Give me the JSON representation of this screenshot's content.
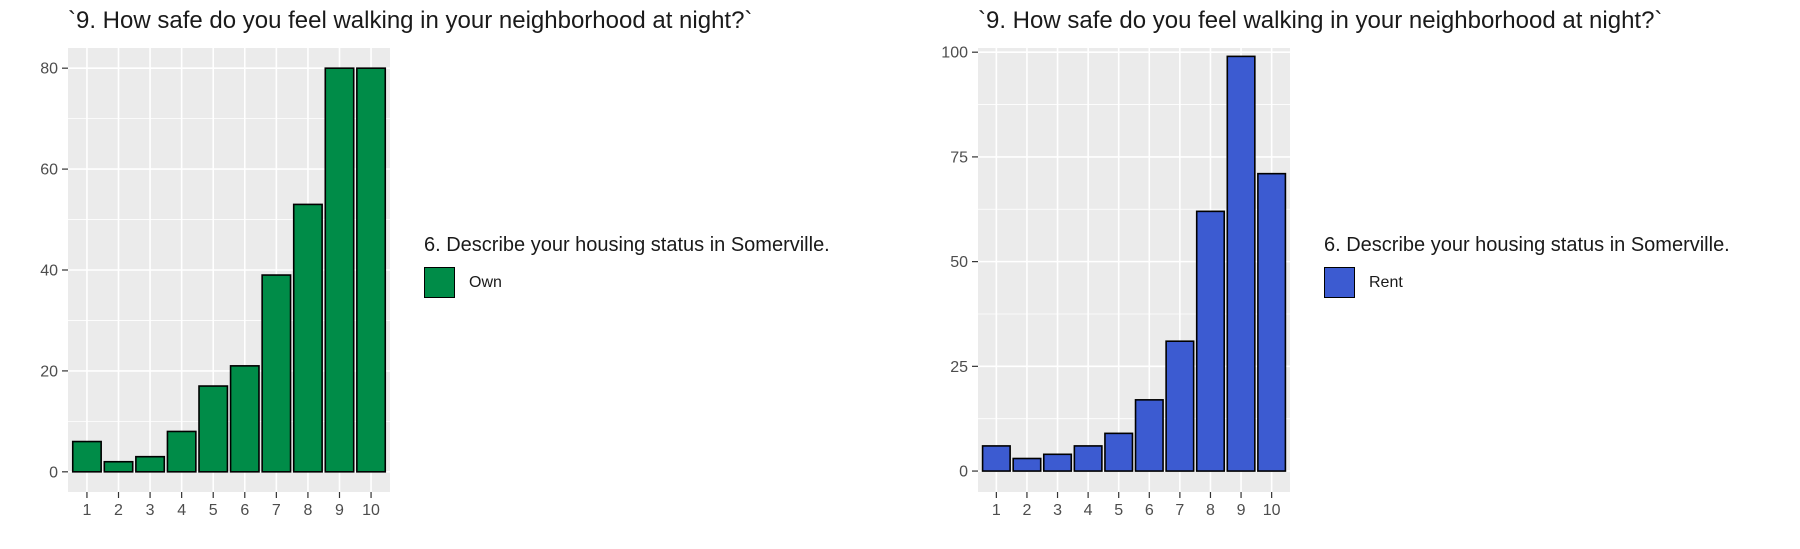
{
  "chart_data": [
    {
      "type": "bar",
      "title": "`9. How safe do you feel walking in your neighborhood at night?`",
      "categories": [
        "1",
        "2",
        "3",
        "4",
        "5",
        "6",
        "7",
        "8",
        "9",
        "10"
      ],
      "series": [
        {
          "name": "Own",
          "values": [
            6,
            2,
            3,
            8,
            17,
            21,
            39,
            53,
            80,
            80
          ]
        }
      ],
      "ylim": [
        -4,
        84
      ],
      "yticks": [
        0,
        20,
        40,
        60,
        80
      ],
      "legend_title": "6. Describe your housing status in Somerville.",
      "legend_position": "right",
      "grid": true,
      "bar_color": "#008C48",
      "panel_background": "#EBEBEB"
    },
    {
      "type": "bar",
      "title": "`9. How safe do you feel walking in your neighborhood at night?`",
      "categories": [
        "1",
        "2",
        "3",
        "4",
        "5",
        "6",
        "7",
        "8",
        "9",
        "10"
      ],
      "series": [
        {
          "name": "Rent",
          "values": [
            6,
            3,
            4,
            6,
            9,
            17,
            31,
            62,
            99,
            71
          ]
        }
      ],
      "ylim": [
        -5,
        101
      ],
      "yticks": [
        0,
        25,
        50,
        75,
        100
      ],
      "legend_title": "6. Describe your housing status in Somerville.",
      "legend_position": "right",
      "grid": true,
      "bar_color": "#3C5BD1",
      "panel_background": "#EBEBEB"
    }
  ]
}
